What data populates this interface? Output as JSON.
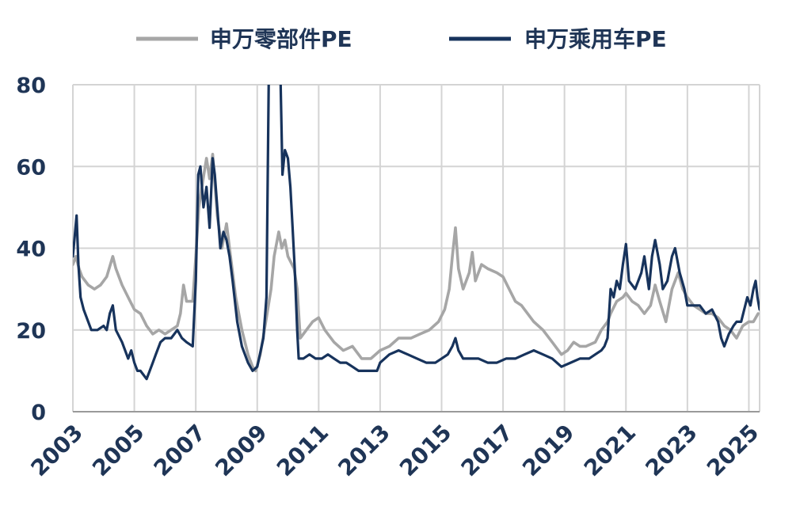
{
  "chart_data": {
    "type": "line",
    "xlim": [
      2003,
      2025.35
    ],
    "ylim": [
      0,
      80
    ],
    "x_ticks": [
      2003,
      2005,
      2007,
      2009,
      2011,
      2013,
      2015,
      2017,
      2019,
      2021,
      2023,
      2025
    ],
    "x_tick_labels": [
      "2003",
      "2005",
      "2007",
      "2009",
      "2011",
      "2013",
      "2015",
      "2017",
      "2019",
      "2021",
      "2023",
      "2025"
    ],
    "y_ticks": [
      0,
      20,
      40,
      60,
      80
    ],
    "y_tick_labels": [
      "0",
      "20",
      "40",
      "60",
      "80"
    ],
    "grid": true,
    "legend_position": "top",
    "series": [
      {
        "name": "申万零部件PE",
        "color": "#a6a6a6",
        "points": [
          [
            2003.0,
            36
          ],
          [
            2003.1,
            38
          ],
          [
            2003.2,
            35
          ],
          [
            2003.3,
            33
          ],
          [
            2003.5,
            31
          ],
          [
            2003.7,
            30
          ],
          [
            2003.9,
            31
          ],
          [
            2004.1,
            33
          ],
          [
            2004.3,
            38
          ],
          [
            2004.4,
            35
          ],
          [
            2004.6,
            31
          ],
          [
            2004.8,
            28
          ],
          [
            2005.0,
            25
          ],
          [
            2005.2,
            24
          ],
          [
            2005.4,
            21
          ],
          [
            2005.6,
            19
          ],
          [
            2005.8,
            20
          ],
          [
            2006.0,
            19
          ],
          [
            2006.2,
            20
          ],
          [
            2006.4,
            21
          ],
          [
            2006.5,
            24
          ],
          [
            2006.6,
            31
          ],
          [
            2006.7,
            27
          ],
          [
            2006.9,
            27
          ],
          [
            2007.0,
            38
          ],
          [
            2007.1,
            50
          ],
          [
            2007.2,
            55
          ],
          [
            2007.35,
            62
          ],
          [
            2007.45,
            57
          ],
          [
            2007.55,
            63
          ],
          [
            2007.7,
            48
          ],
          [
            2007.85,
            40
          ],
          [
            2008.0,
            46
          ],
          [
            2008.1,
            40
          ],
          [
            2008.3,
            28
          ],
          [
            2008.5,
            20
          ],
          [
            2008.7,
            14
          ],
          [
            2008.85,
            11
          ],
          [
            2008.95,
            10
          ],
          [
            2009.1,
            14
          ],
          [
            2009.3,
            23
          ],
          [
            2009.45,
            30
          ],
          [
            2009.55,
            38
          ],
          [
            2009.7,
            44
          ],
          [
            2009.8,
            40
          ],
          [
            2009.9,
            42
          ],
          [
            2010.0,
            38
          ],
          [
            2010.2,
            35
          ],
          [
            2010.3,
            30
          ],
          [
            2010.4,
            18
          ],
          [
            2010.6,
            20
          ],
          [
            2010.8,
            22
          ],
          [
            2011.0,
            23
          ],
          [
            2011.2,
            20
          ],
          [
            2011.5,
            17
          ],
          [
            2011.8,
            15
          ],
          [
            2012.1,
            16
          ],
          [
            2012.4,
            13
          ],
          [
            2012.7,
            13
          ],
          [
            2013.0,
            15
          ],
          [
            2013.3,
            16
          ],
          [
            2013.6,
            18
          ],
          [
            2014.0,
            18
          ],
          [
            2014.3,
            19
          ],
          [
            2014.6,
            20
          ],
          [
            2014.9,
            22
          ],
          [
            2015.1,
            25
          ],
          [
            2015.25,
            30
          ],
          [
            2015.35,
            38
          ],
          [
            2015.45,
            45
          ],
          [
            2015.55,
            35
          ],
          [
            2015.7,
            30
          ],
          [
            2015.9,
            34
          ],
          [
            2016.0,
            39
          ],
          [
            2016.1,
            32
          ],
          [
            2016.3,
            36
          ],
          [
            2016.5,
            35
          ],
          [
            2016.8,
            34
          ],
          [
            2017.0,
            33
          ],
          [
            2017.2,
            30
          ],
          [
            2017.4,
            27
          ],
          [
            2017.6,
            26
          ],
          [
            2017.8,
            24
          ],
          [
            2018.0,
            22
          ],
          [
            2018.3,
            20
          ],
          [
            2018.6,
            17
          ],
          [
            2018.9,
            14
          ],
          [
            2019.1,
            15
          ],
          [
            2019.3,
            17
          ],
          [
            2019.5,
            16
          ],
          [
            2019.7,
            16
          ],
          [
            2020.0,
            17
          ],
          [
            2020.2,
            20
          ],
          [
            2020.4,
            22
          ],
          [
            2020.5,
            24
          ],
          [
            2020.7,
            27
          ],
          [
            2020.9,
            28
          ],
          [
            2021.0,
            29
          ],
          [
            2021.2,
            27
          ],
          [
            2021.4,
            26
          ],
          [
            2021.6,
            24
          ],
          [
            2021.8,
            26
          ],
          [
            2021.95,
            31
          ],
          [
            2022.1,
            27
          ],
          [
            2022.3,
            22
          ],
          [
            2022.5,
            30
          ],
          [
            2022.7,
            34
          ],
          [
            2022.85,
            30
          ],
          [
            2023.0,
            28
          ],
          [
            2023.2,
            26
          ],
          [
            2023.4,
            25
          ],
          [
            2023.6,
            24
          ],
          [
            2023.8,
            24
          ],
          [
            2024.0,
            23
          ],
          [
            2024.2,
            21
          ],
          [
            2024.4,
            20
          ],
          [
            2024.6,
            18
          ],
          [
            2024.8,
            21
          ],
          [
            2025.0,
            22
          ],
          [
            2025.15,
            22
          ],
          [
            2025.3,
            24
          ]
        ]
      },
      {
        "name": "申万乘用车PE",
        "color": "#17335c",
        "points": [
          [
            2003.0,
            38
          ],
          [
            2003.05,
            42
          ],
          [
            2003.12,
            48
          ],
          [
            2003.18,
            36
          ],
          [
            2003.25,
            28
          ],
          [
            2003.35,
            25
          ],
          [
            2003.5,
            22
          ],
          [
            2003.6,
            20
          ],
          [
            2003.8,
            20
          ],
          [
            2004.0,
            21
          ],
          [
            2004.1,
            20
          ],
          [
            2004.2,
            24
          ],
          [
            2004.3,
            26
          ],
          [
            2004.4,
            20
          ],
          [
            2004.6,
            17
          ],
          [
            2004.8,
            13
          ],
          [
            2004.9,
            15
          ],
          [
            2005.0,
            12
          ],
          [
            2005.1,
            10
          ],
          [
            2005.2,
            10
          ],
          [
            2005.3,
            9
          ],
          [
            2005.4,
            8
          ],
          [
            2005.5,
            10
          ],
          [
            2005.6,
            12
          ],
          [
            2005.7,
            14
          ],
          [
            2005.85,
            17
          ],
          [
            2006.0,
            18
          ],
          [
            2006.2,
            18
          ],
          [
            2006.4,
            20
          ],
          [
            2006.55,
            18
          ],
          [
            2006.7,
            17
          ],
          [
            2006.9,
            16
          ],
          [
            2007.0,
            32
          ],
          [
            2007.08,
            58
          ],
          [
            2007.15,
            60
          ],
          [
            2007.25,
            50
          ],
          [
            2007.35,
            55
          ],
          [
            2007.45,
            45
          ],
          [
            2007.55,
            62
          ],
          [
            2007.62,
            58
          ],
          [
            2007.7,
            50
          ],
          [
            2007.8,
            40
          ],
          [
            2007.9,
            44
          ],
          [
            2008.0,
            42
          ],
          [
            2008.1,
            38
          ],
          [
            2008.2,
            32
          ],
          [
            2008.35,
            22
          ],
          [
            2008.5,
            16
          ],
          [
            2008.7,
            12
          ],
          [
            2008.85,
            10
          ],
          [
            2009.0,
            11
          ],
          [
            2009.2,
            18
          ],
          [
            2009.3,
            28
          ],
          [
            2009.38,
            85
          ],
          [
            2009.45,
            85
          ],
          [
            2009.55,
            85
          ],
          [
            2009.65,
            85
          ],
          [
            2009.75,
            85
          ],
          [
            2009.82,
            58
          ],
          [
            2009.9,
            64
          ],
          [
            2010.0,
            62
          ],
          [
            2010.08,
            55
          ],
          [
            2010.15,
            45
          ],
          [
            2010.22,
            35
          ],
          [
            2010.3,
            20
          ],
          [
            2010.35,
            13
          ],
          [
            2010.5,
            13
          ],
          [
            2010.7,
            14
          ],
          [
            2010.9,
            13
          ],
          [
            2011.1,
            13
          ],
          [
            2011.3,
            14
          ],
          [
            2011.5,
            13
          ],
          [
            2011.7,
            12
          ],
          [
            2011.9,
            12
          ],
          [
            2012.1,
            11
          ],
          [
            2012.3,
            10
          ],
          [
            2012.5,
            10
          ],
          [
            2012.7,
            10
          ],
          [
            2012.9,
            10
          ],
          [
            2013.0,
            12
          ],
          [
            2013.3,
            14
          ],
          [
            2013.6,
            15
          ],
          [
            2013.9,
            14
          ],
          [
            2014.2,
            13
          ],
          [
            2014.5,
            12
          ],
          [
            2014.8,
            12
          ],
          [
            2015.0,
            13
          ],
          [
            2015.2,
            14
          ],
          [
            2015.35,
            16
          ],
          [
            2015.45,
            18
          ],
          [
            2015.55,
            15
          ],
          [
            2015.7,
            13
          ],
          [
            2015.9,
            13
          ],
          [
            2016.2,
            13
          ],
          [
            2016.5,
            12
          ],
          [
            2016.8,
            12
          ],
          [
            2017.1,
            13
          ],
          [
            2017.4,
            13
          ],
          [
            2017.7,
            14
          ],
          [
            2018.0,
            15
          ],
          [
            2018.3,
            14
          ],
          [
            2018.6,
            13
          ],
          [
            2018.9,
            11
          ],
          [
            2019.2,
            12
          ],
          [
            2019.5,
            13
          ],
          [
            2019.8,
            13
          ],
          [
            2020.0,
            14
          ],
          [
            2020.2,
            15
          ],
          [
            2020.3,
            16
          ],
          [
            2020.4,
            18
          ],
          [
            2020.5,
            30
          ],
          [
            2020.6,
            28
          ],
          [
            2020.7,
            32
          ],
          [
            2020.8,
            30
          ],
          [
            2020.9,
            36
          ],
          [
            2021.0,
            41
          ],
          [
            2021.1,
            32
          ],
          [
            2021.3,
            30
          ],
          [
            2021.5,
            34
          ],
          [
            2021.6,
            38
          ],
          [
            2021.75,
            30
          ],
          [
            2021.85,
            38
          ],
          [
            2021.95,
            42
          ],
          [
            2022.1,
            36
          ],
          [
            2022.2,
            30
          ],
          [
            2022.35,
            32
          ],
          [
            2022.5,
            38
          ],
          [
            2022.6,
            40
          ],
          [
            2022.75,
            34
          ],
          [
            2022.9,
            30
          ],
          [
            2023.0,
            26
          ],
          [
            2023.2,
            26
          ],
          [
            2023.4,
            26
          ],
          [
            2023.6,
            24
          ],
          [
            2023.8,
            25
          ],
          [
            2024.0,
            22
          ],
          [
            2024.1,
            18
          ],
          [
            2024.2,
            16
          ],
          [
            2024.35,
            19
          ],
          [
            2024.5,
            21
          ],
          [
            2024.6,
            22
          ],
          [
            2024.75,
            22
          ],
          [
            2024.85,
            25
          ],
          [
            2024.95,
            28
          ],
          [
            2025.05,
            26
          ],
          [
            2025.15,
            30
          ],
          [
            2025.22,
            32
          ],
          [
            2025.28,
            28
          ],
          [
            2025.35,
            25
          ]
        ]
      }
    ]
  }
}
